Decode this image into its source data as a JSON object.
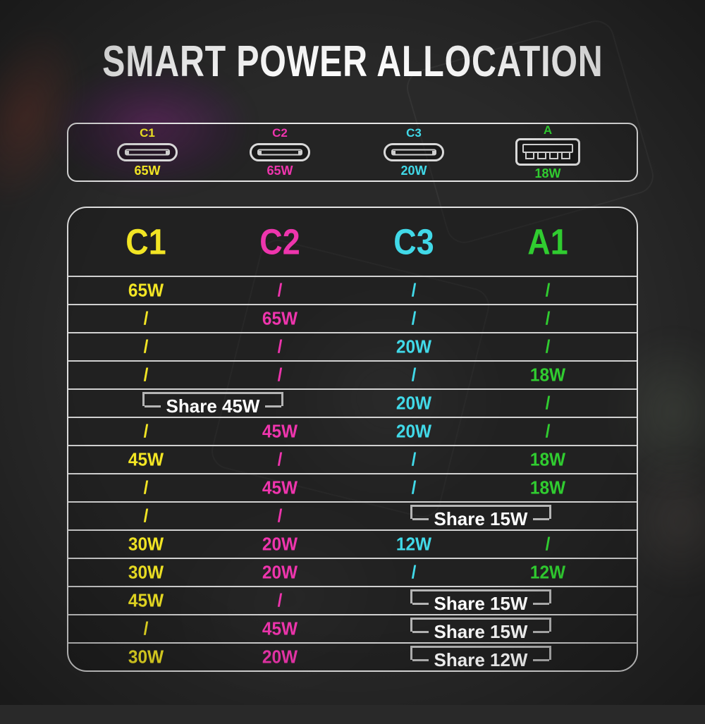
{
  "title": "SMART POWER ALLOCATION",
  "colors": {
    "c1": "#f2e524",
    "c2": "#ee35ad",
    "c3": "#41d9e8",
    "a1": "#30cc30"
  },
  "ports": [
    {
      "label": "C1",
      "watt": "65W",
      "type": "usb-c",
      "color": "c1"
    },
    {
      "label": "C2",
      "watt": "65W",
      "type": "usb-c",
      "color": "c2"
    },
    {
      "label": "C3",
      "watt": "20W",
      "type": "usb-c",
      "color": "c3"
    },
    {
      "label": "A",
      "watt": "18W",
      "type": "usb-a",
      "color": "a1"
    }
  ],
  "table": {
    "headers": [
      "C1",
      "C2",
      "C3",
      "A1"
    ],
    "rows": [
      {
        "c1": "65W",
        "c2": "/",
        "c3": "/",
        "a1": "/"
      },
      {
        "c1": "/",
        "c2": "65W",
        "c3": "/",
        "a1": "/"
      },
      {
        "c1": "/",
        "c2": "/",
        "c3": "20W",
        "a1": "/"
      },
      {
        "c1": "/",
        "c2": "/",
        "c3": "/",
        "a1": "18W"
      },
      {
        "share": {
          "cols": [
            "c1",
            "c2"
          ],
          "label": "Share 45W"
        },
        "c3": "20W",
        "a1": "/"
      },
      {
        "c1": "/",
        "c2": "45W",
        "c3": "20W",
        "a1": "/"
      },
      {
        "c1": "45W",
        "c2": "/",
        "c3": "/",
        "a1": "18W"
      },
      {
        "c1": "/",
        "c2": "45W",
        "c3": "/",
        "a1": "18W"
      },
      {
        "c1": "/",
        "c2": "/",
        "share": {
          "cols": [
            "c3",
            "a1"
          ],
          "label": "Share 15W"
        }
      },
      {
        "c1": "30W",
        "c2": "20W",
        "c3": "12W",
        "a1": "/"
      },
      {
        "c1": "30W",
        "c2": "20W",
        "c3": "/",
        "a1": "12W"
      },
      {
        "c1": "45W",
        "c2": "/",
        "share": {
          "cols": [
            "c3",
            "a1"
          ],
          "label": "Share 15W"
        }
      },
      {
        "c1": "/",
        "c2": "45W",
        "share": {
          "cols": [
            "c3",
            "a1"
          ],
          "label": "Share 15W"
        }
      },
      {
        "c1": "30W",
        "c2": "20W",
        "share": {
          "cols": [
            "c3",
            "a1"
          ],
          "label": "Share 12W"
        }
      }
    ]
  },
  "chart_data": {
    "type": "table",
    "title": "SMART POWER ALLOCATION",
    "columns": [
      "C1",
      "C2",
      "C3",
      "A1"
    ],
    "port_max_watts": {
      "C1": "65W",
      "C2": "65W",
      "C3": "20W",
      "A": "18W"
    },
    "rows": [
      [
        "65W",
        "/",
        "/",
        "/"
      ],
      [
        "/",
        "65W",
        "/",
        "/"
      ],
      [
        "/",
        "/",
        "20W",
        "/"
      ],
      [
        "/",
        "/",
        "/",
        "18W"
      ],
      [
        {
          "span": [
            "C1",
            "C2"
          ],
          "label": "Share 45W"
        },
        "20W",
        "/"
      ],
      [
        "/",
        "45W",
        "20W",
        "/"
      ],
      [
        "45W",
        "/",
        "/",
        "18W"
      ],
      [
        "/",
        "45W",
        "/",
        "18W"
      ],
      [
        "/",
        "/",
        {
          "span": [
            "C3",
            "A1"
          ],
          "label": "Share 15W"
        }
      ],
      [
        "30W",
        "20W",
        "12W",
        "/"
      ],
      [
        "30W",
        "20W",
        "/",
        "12W"
      ],
      [
        "45W",
        "/",
        {
          "span": [
            "C3",
            "A1"
          ],
          "label": "Share 15W"
        }
      ],
      [
        "/",
        "45W",
        {
          "span": [
            "C3",
            "A1"
          ],
          "label": "Share 15W"
        }
      ],
      [
        "30W",
        "20W",
        {
          "span": [
            "C3",
            "A1"
          ],
          "label": "Share 12W"
        }
      ]
    ]
  }
}
